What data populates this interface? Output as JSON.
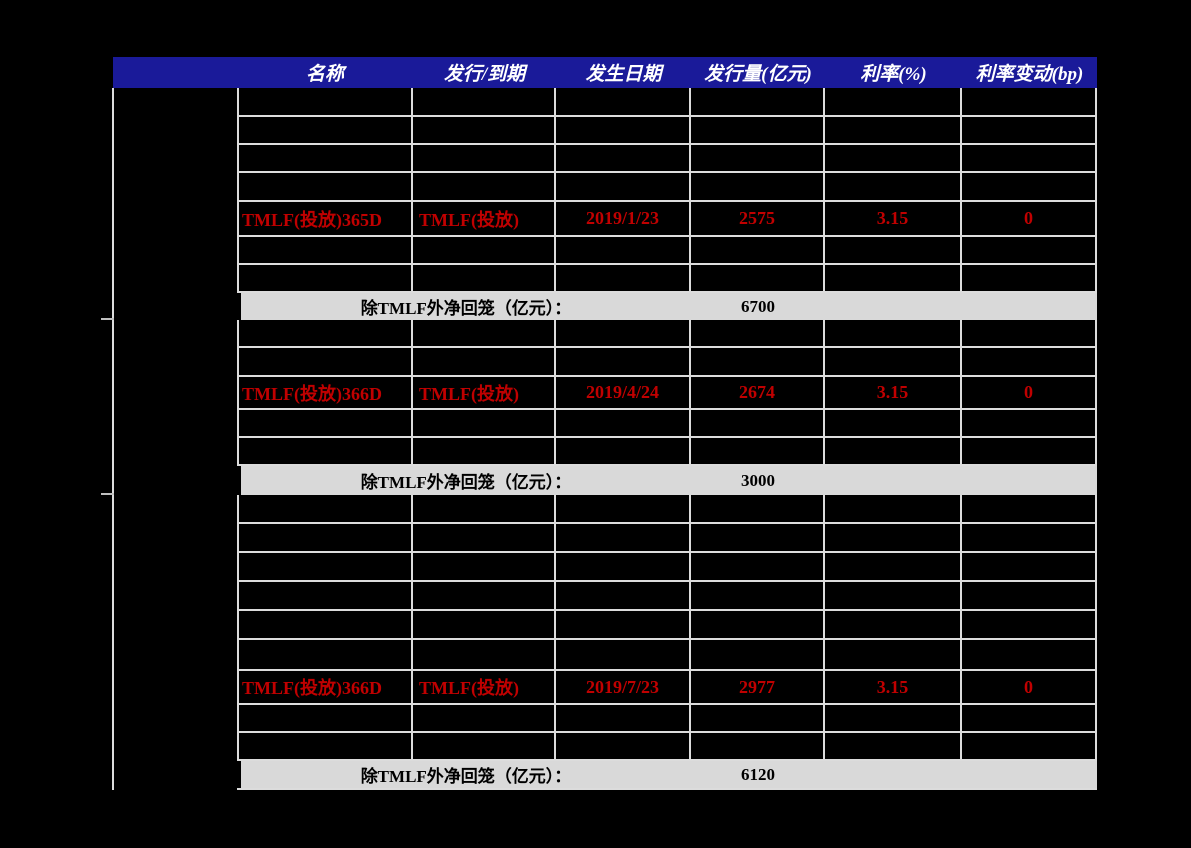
{
  "header": {
    "columns": [
      "名称",
      "发行/到期",
      "发生日期",
      "发行量(亿元)",
      "利率(%)",
      "利率变动(bp)"
    ]
  },
  "summary": {
    "label": "除TMLF外净回笼（亿元）："
  },
  "sections": [
    {
      "tmlf": {
        "name": "TMLF(投放)365D",
        "issue_type": "TMLF(投放)",
        "date": "2019/1/23",
        "volume": "2575",
        "rate": "3.15",
        "change": "0"
      },
      "net_withdrawal": "6700"
    },
    {
      "tmlf": {
        "name": "TMLF(投放)366D",
        "issue_type": "TMLF(投放)",
        "date": "2019/4/24",
        "volume": "2674",
        "rate": "3.15",
        "change": "0"
      },
      "net_withdrawal": "3000"
    },
    {
      "tmlf": {
        "name": "TMLF(投放)366D",
        "issue_type": "TMLF(投放)",
        "date": "2019/7/23",
        "volume": "2977",
        "rate": "3.15",
        "change": "0"
      },
      "net_withdrawal": "6120"
    }
  ],
  "colors": {
    "background": "#000000",
    "header_bg": "#1A1A99",
    "header_text": "#FFFFFF",
    "highlight_text": "#C00000",
    "summary_band": "#D9D9D9",
    "grid_line": "#DCDCDC"
  }
}
